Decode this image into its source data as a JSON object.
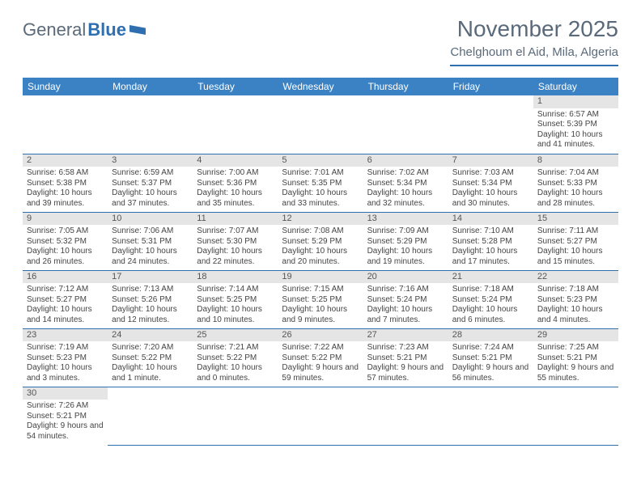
{
  "logo": {
    "part1": "General",
    "part2": "Blue"
  },
  "title": "November 2025",
  "location": "Chelghoum el Aid, Mila, Algeria",
  "colors": {
    "header_bg": "#3b82c4",
    "header_text": "#ffffff",
    "rule": "#2f6fb0",
    "daynum_bg": "#e5e5e5",
    "text": "#444444",
    "title_text": "#5a6a7a"
  },
  "weekdays": [
    "Sunday",
    "Monday",
    "Tuesday",
    "Wednesday",
    "Thursday",
    "Friday",
    "Saturday"
  ],
  "weeks": [
    [
      null,
      null,
      null,
      null,
      null,
      null,
      {
        "n": "1",
        "sr": "6:57 AM",
        "ss": "5:39 PM",
        "dl": "10 hours and 41 minutes."
      }
    ],
    [
      {
        "n": "2",
        "sr": "6:58 AM",
        "ss": "5:38 PM",
        "dl": "10 hours and 39 minutes."
      },
      {
        "n": "3",
        "sr": "6:59 AM",
        "ss": "5:37 PM",
        "dl": "10 hours and 37 minutes."
      },
      {
        "n": "4",
        "sr": "7:00 AM",
        "ss": "5:36 PM",
        "dl": "10 hours and 35 minutes."
      },
      {
        "n": "5",
        "sr": "7:01 AM",
        "ss": "5:35 PM",
        "dl": "10 hours and 33 minutes."
      },
      {
        "n": "6",
        "sr": "7:02 AM",
        "ss": "5:34 PM",
        "dl": "10 hours and 32 minutes."
      },
      {
        "n": "7",
        "sr": "7:03 AM",
        "ss": "5:34 PM",
        "dl": "10 hours and 30 minutes."
      },
      {
        "n": "8",
        "sr": "7:04 AM",
        "ss": "5:33 PM",
        "dl": "10 hours and 28 minutes."
      }
    ],
    [
      {
        "n": "9",
        "sr": "7:05 AM",
        "ss": "5:32 PM",
        "dl": "10 hours and 26 minutes."
      },
      {
        "n": "10",
        "sr": "7:06 AM",
        "ss": "5:31 PM",
        "dl": "10 hours and 24 minutes."
      },
      {
        "n": "11",
        "sr": "7:07 AM",
        "ss": "5:30 PM",
        "dl": "10 hours and 22 minutes."
      },
      {
        "n": "12",
        "sr": "7:08 AM",
        "ss": "5:29 PM",
        "dl": "10 hours and 20 minutes."
      },
      {
        "n": "13",
        "sr": "7:09 AM",
        "ss": "5:29 PM",
        "dl": "10 hours and 19 minutes."
      },
      {
        "n": "14",
        "sr": "7:10 AM",
        "ss": "5:28 PM",
        "dl": "10 hours and 17 minutes."
      },
      {
        "n": "15",
        "sr": "7:11 AM",
        "ss": "5:27 PM",
        "dl": "10 hours and 15 minutes."
      }
    ],
    [
      {
        "n": "16",
        "sr": "7:12 AM",
        "ss": "5:27 PM",
        "dl": "10 hours and 14 minutes."
      },
      {
        "n": "17",
        "sr": "7:13 AM",
        "ss": "5:26 PM",
        "dl": "10 hours and 12 minutes."
      },
      {
        "n": "18",
        "sr": "7:14 AM",
        "ss": "5:25 PM",
        "dl": "10 hours and 10 minutes."
      },
      {
        "n": "19",
        "sr": "7:15 AM",
        "ss": "5:25 PM",
        "dl": "10 hours and 9 minutes."
      },
      {
        "n": "20",
        "sr": "7:16 AM",
        "ss": "5:24 PM",
        "dl": "10 hours and 7 minutes."
      },
      {
        "n": "21",
        "sr": "7:18 AM",
        "ss": "5:24 PM",
        "dl": "10 hours and 6 minutes."
      },
      {
        "n": "22",
        "sr": "7:18 AM",
        "ss": "5:23 PM",
        "dl": "10 hours and 4 minutes."
      }
    ],
    [
      {
        "n": "23",
        "sr": "7:19 AM",
        "ss": "5:23 PM",
        "dl": "10 hours and 3 minutes."
      },
      {
        "n": "24",
        "sr": "7:20 AM",
        "ss": "5:22 PM",
        "dl": "10 hours and 1 minute."
      },
      {
        "n": "25",
        "sr": "7:21 AM",
        "ss": "5:22 PM",
        "dl": "10 hours and 0 minutes."
      },
      {
        "n": "26",
        "sr": "7:22 AM",
        "ss": "5:22 PM",
        "dl": "9 hours and 59 minutes."
      },
      {
        "n": "27",
        "sr": "7:23 AM",
        "ss": "5:21 PM",
        "dl": "9 hours and 57 minutes."
      },
      {
        "n": "28",
        "sr": "7:24 AM",
        "ss": "5:21 PM",
        "dl": "9 hours and 56 minutes."
      },
      {
        "n": "29",
        "sr": "7:25 AM",
        "ss": "5:21 PM",
        "dl": "9 hours and 55 minutes."
      }
    ],
    [
      {
        "n": "30",
        "sr": "7:26 AM",
        "ss": "5:21 PM",
        "dl": "9 hours and 54 minutes."
      },
      null,
      null,
      null,
      null,
      null,
      null
    ]
  ],
  "labels": {
    "sunrise": "Sunrise: ",
    "sunset": "Sunset: ",
    "daylight": "Daylight: "
  }
}
